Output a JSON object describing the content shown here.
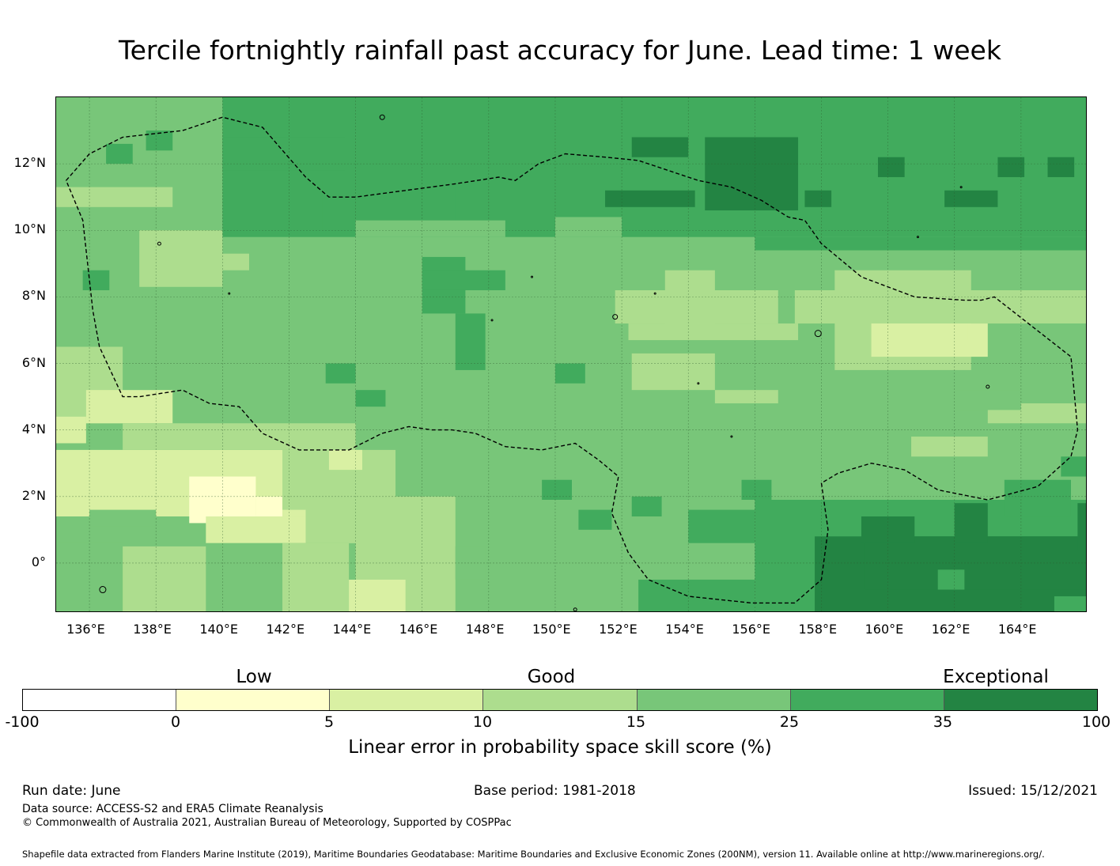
{
  "title": "Tercile fortnightly rainfall past accuracy for June. Lead time: 1 week",
  "map": {
    "x_ticks": [
      "136°E",
      "138°E",
      "140°E",
      "142°E",
      "144°E",
      "146°E",
      "148°E",
      "150°E",
      "152°E",
      "154°E",
      "156°E",
      "158°E",
      "160°E",
      "162°E",
      "164°E"
    ],
    "y_ticks": [
      "12°N",
      "10°N",
      "8°N",
      "6°N",
      "4°N",
      "2°N",
      "0°"
    ],
    "lon_range": [
      135,
      166
    ],
    "lat_range": [
      -1.5,
      14
    ],
    "eez_boundary": "dashed",
    "grid_colors": [
      "#ffffcc",
      "#d9f0a3",
      "#addd8e",
      "#78c679",
      "#41ab5d",
      "#238443"
    ]
  },
  "colorbar": {
    "categories": [
      "Low",
      "Good",
      "Exceptional"
    ],
    "ticks": [
      "-100",
      "0",
      "5",
      "10",
      "15",
      "25",
      "35",
      "100"
    ],
    "colors": [
      "#ffffff",
      "#ffffcc",
      "#d9f0a3",
      "#addd8e",
      "#78c679",
      "#41ab5d",
      "#238443"
    ],
    "label": "Linear error in probability space skill score (%)"
  },
  "footer": {
    "run_date": "Run date: June",
    "base_period": "Base period: 1981-2018",
    "issued": "Issued: 15/12/2021",
    "data_source": "Data source: ACCESS-S2 and ERA5 Climate Reanalysis",
    "copyright": "© Commonwealth of Australia 2021, Australian Bureau of Meteorology, Supported by COSPPac",
    "shapefile": "Shapefile data extracted from Flanders Marine Institute (2019), Maritime Boundaries Geodatabase: Maritime Boundaries and Exclusive Economic Zones (200NM), version 11. Available online at http://www.marineregions.org/."
  }
}
